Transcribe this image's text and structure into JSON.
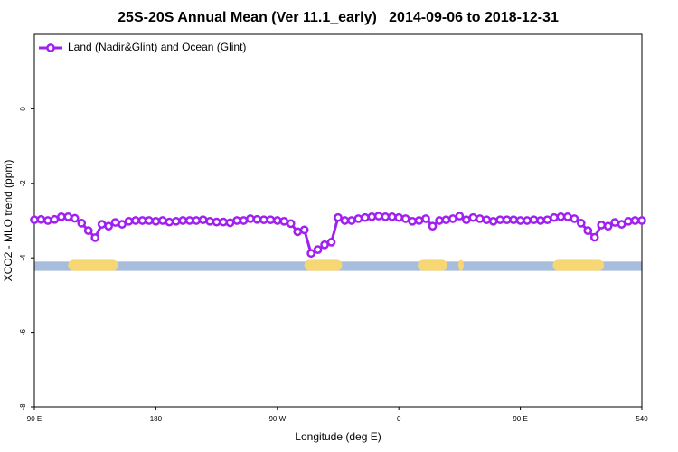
{
  "chart_data": {
    "type": "line",
    "title": "25S-20S Annual Mean (Ver 11.1_early)   2014-09-06 to 2018-12-31",
    "xlabel": "Longitude (deg E)",
    "ylabel": "XCO2 - MLO trend (ppm)",
    "x": [
      90,
      95,
      100,
      105,
      110,
      115,
      120,
      125,
      130,
      135,
      140,
      145,
      150,
      155,
      160,
      165,
      170,
      175,
      180,
      185,
      190,
      195,
      200,
      205,
      210,
      215,
      220,
      225,
      230,
      235,
      240,
      245,
      250,
      255,
      260,
      265,
      270,
      275,
      280,
      285,
      290,
      295,
      300,
      305,
      310,
      315,
      320,
      325,
      330,
      335,
      340,
      345,
      350,
      355,
      360,
      365,
      370,
      375,
      380,
      385,
      390,
      395,
      400,
      405,
      410,
      415,
      420,
      425,
      430,
      435,
      440,
      445,
      450,
      455,
      460,
      465,
      470,
      475,
      480,
      485,
      490,
      495,
      500,
      505,
      510,
      515,
      520,
      525,
      530,
      535,
      540
    ],
    "series": [
      {
        "name": "Land (Nadir&Glint) and Ocean (Glint)",
        "color": "#a020f0",
        "values": [
          -2.98,
          -2.97,
          -3.0,
          -2.97,
          -2.9,
          -2.9,
          -2.94,
          -3.07,
          -3.27,
          -3.46,
          -3.1,
          -3.15,
          -3.05,
          -3.1,
          -3.02,
          -3.0,
          -3.0,
          -3.0,
          -3.02,
          -3.0,
          -3.04,
          -3.02,
          -3.0,
          -3.0,
          -3.0,
          -2.98,
          -3.02,
          -3.04,
          -3.04,
          -3.06,
          -3.0,
          -3.0,
          -2.95,
          -2.97,
          -2.98,
          -2.98,
          -3.0,
          -3.02,
          -3.08,
          -3.3,
          -3.25,
          -3.88,
          -3.78,
          -3.65,
          -3.58,
          -2.92,
          -3.0,
          -3.0,
          -2.95,
          -2.92,
          -2.9,
          -2.88,
          -2.9,
          -2.9,
          -2.92,
          -2.95,
          -3.02,
          -3.0,
          -2.95,
          -3.15,
          -3.0,
          -2.98,
          -2.95,
          -2.88,
          -2.98,
          -2.92,
          -2.95,
          -2.98,
          -3.02,
          -2.98,
          -2.98,
          -2.98,
          -3.0,
          -3.0,
          -2.98,
          -3.0,
          -2.98,
          -2.92,
          -2.9,
          -2.9,
          -2.95,
          -3.07,
          -3.27,
          -3.45,
          -3.12,
          -3.15,
          -3.05,
          -3.1,
          -3.02,
          -3.0,
          -3.0
        ]
      }
    ],
    "xlim": [
      90,
      540
    ],
    "xticks": [
      {
        "value": 90,
        "label": "90 E"
      },
      180,
      {
        "value": 270,
        "label": "90 W"
      },
      {
        "value": 360,
        "label": "0"
      },
      {
        "value": 450,
        "label": "90 E"
      },
      540
    ],
    "ylim": [
      -8,
      2
    ],
    "yticks": [
      -8,
      -6,
      -4,
      -2,
      0
    ],
    "legend": "upper-left",
    "surface_band": {
      "ylim": [
        -4.35,
        -4.1
      ],
      "ocean_color": "#a7bddb",
      "land_color": "#f7d774",
      "land": [
        [
          115,
          152
        ],
        [
          290,
          318
        ],
        [
          374,
          396
        ],
        [
          404,
          408
        ],
        [
          474,
          512
        ]
      ]
    }
  }
}
